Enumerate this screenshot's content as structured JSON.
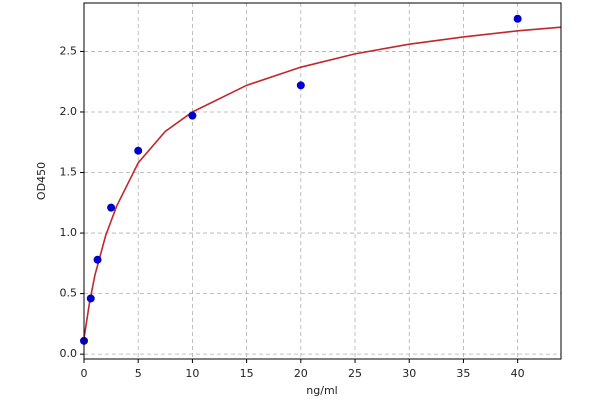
{
  "chart_data": {
    "type": "scatter",
    "xlabel": "ng/ml",
    "ylabel": "OD450",
    "xlim": [
      0,
      44
    ],
    "ylim": [
      -0.04,
      2.9
    ],
    "xticks": [
      0,
      5,
      10,
      15,
      20,
      25,
      30,
      35,
      40
    ],
    "yticks": [
      {
        "value": 0,
        "label": "0.0"
      },
      0.5,
      {
        "value": 1,
        "label": "1.0"
      },
      1.5,
      {
        "value": 2,
        "label": "2.0"
      },
      2.5
    ],
    "grid": true,
    "series": [
      {
        "type": "line",
        "color": "#c0282d",
        "x": [
          0,
          0.5,
          1,
          2,
          3,
          5,
          7.5,
          10,
          15,
          20,
          25,
          30,
          35,
          40,
          44
        ],
        "values": [
          0.13,
          0.42,
          0.65,
          0.98,
          1.22,
          1.58,
          1.84,
          2.0,
          2.22,
          2.37,
          2.48,
          2.56,
          2.62,
          2.67,
          2.7
        ]
      },
      {
        "type": "scatter",
        "color": "#0000cc",
        "x": [
          0,
          0.625,
          1.25,
          2.5,
          5,
          10,
          20,
          40
        ],
        "values": [
          0.11,
          0.46,
          0.78,
          1.21,
          1.68,
          1.97,
          2.22,
          2.77
        ]
      }
    ]
  }
}
